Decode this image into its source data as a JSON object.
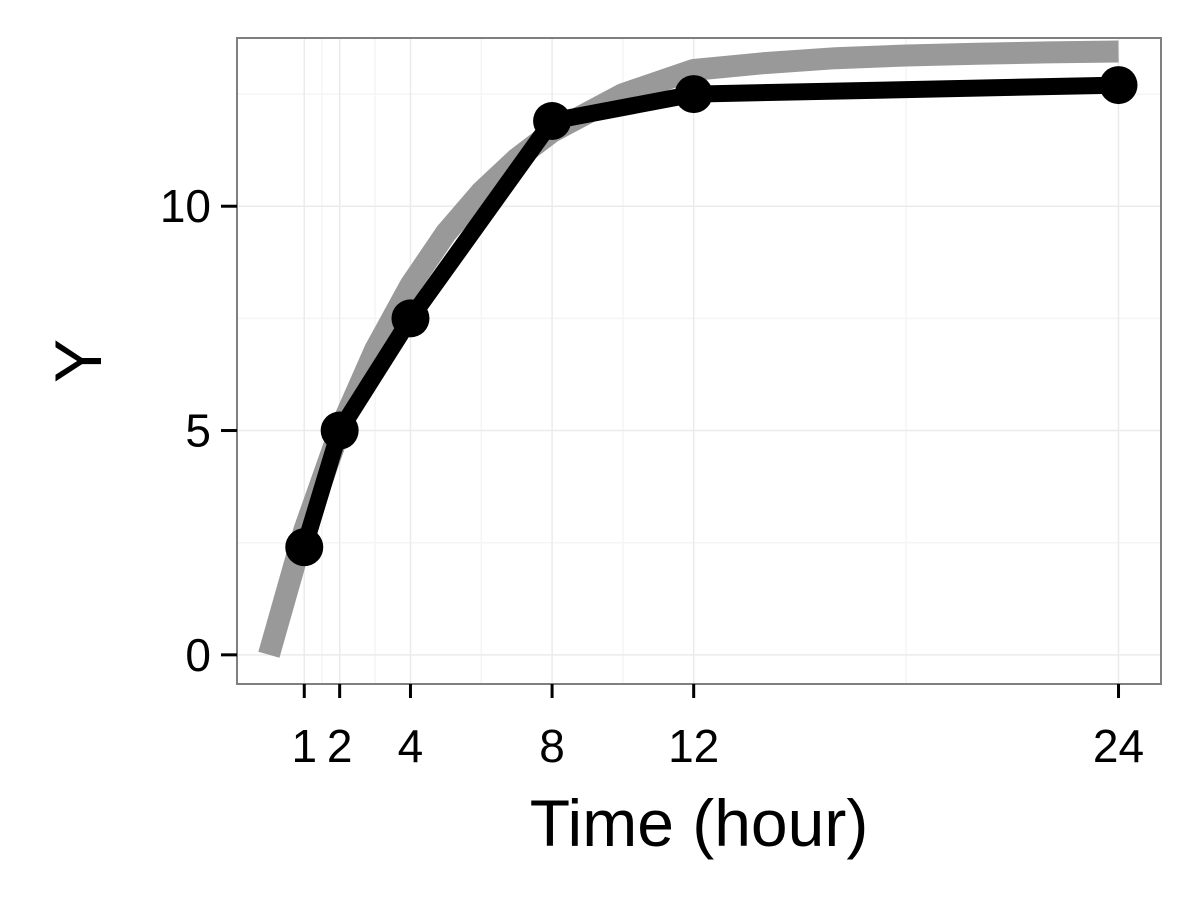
{
  "chart_data": {
    "type": "line",
    "xlabel": "Time (hour)",
    "ylabel": "Y",
    "x_ticks": [
      1,
      2,
      4,
      8,
      12,
      24
    ],
    "x_tick_labels": [
      "1",
      "2",
      "4",
      "8",
      "12",
      "24"
    ],
    "y_ticks": [
      0,
      5,
      10
    ],
    "y_tick_labels": [
      "0",
      "5",
      "10"
    ],
    "xlim": [
      -0.9,
      25.2
    ],
    "ylim": [
      -0.65,
      13.75
    ],
    "grid": true,
    "series": [
      {
        "kind": "observed",
        "x": [
          1,
          2,
          4,
          8,
          12,
          24
        ],
        "y": [
          2.4,
          5.0,
          7.5,
          11.9,
          12.5,
          12.7
        ]
      },
      {
        "kind": "fitted",
        "x": [
          0,
          1,
          2,
          3,
          4,
          5,
          6,
          7,
          8,
          10,
          12,
          14,
          16,
          18,
          20,
          22,
          24
        ],
        "y": [
          0,
          2.78,
          5.01,
          6.8,
          8.24,
          9.4,
          10.32,
          11.06,
          11.66,
          12.5,
          13.04,
          13.19,
          13.3,
          13.36,
          13.4,
          13.43,
          13.45
        ]
      }
    ],
    "colors": {
      "observed": "#000000",
      "fitted": "#999999",
      "panel_border": "#7f7f7f",
      "grid_major": "#ebebeb",
      "grid_minor": "#f5f5f5",
      "background": "#ffffff"
    }
  }
}
